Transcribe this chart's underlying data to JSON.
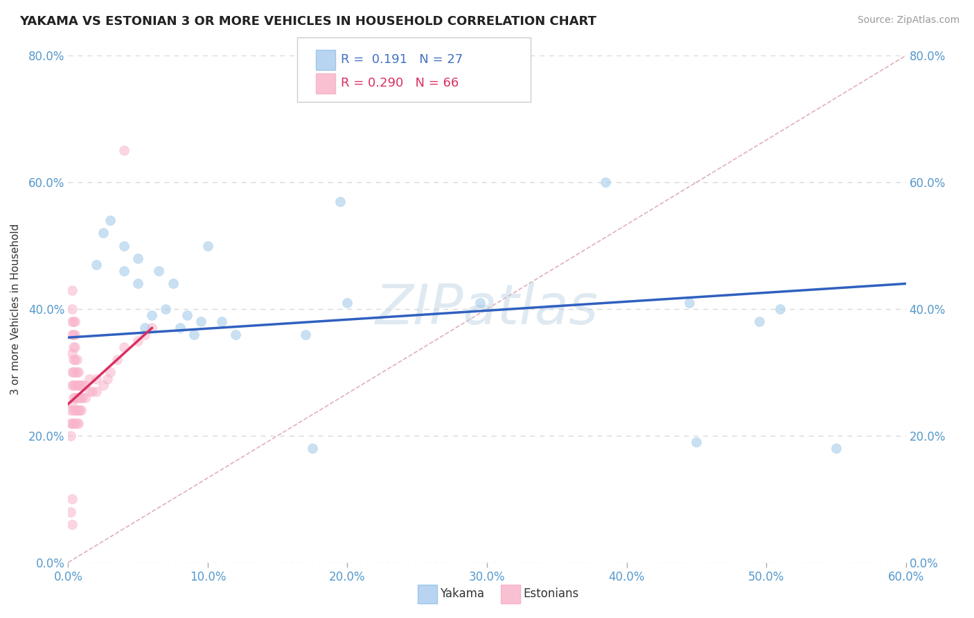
{
  "title": "YAKAMA VS ESTONIAN 3 OR MORE VEHICLES IN HOUSEHOLD CORRELATION CHART",
  "source_text": "Source: ZipAtlas.com",
  "ylabel": "3 or more Vehicles in Household",
  "xlim": [
    0.0,
    0.6
  ],
  "ylim": [
    0.0,
    0.8
  ],
  "xtick_vals": [
    0.0,
    0.1,
    0.2,
    0.3,
    0.4,
    0.5,
    0.6
  ],
  "xtick_labels": [
    "0.0%",
    "10.0%",
    "20.0%",
    "30.0%",
    "40.0%",
    "50.0%",
    "60.0%"
  ],
  "ytick_vals": [
    0.0,
    0.2,
    0.4,
    0.6,
    0.8
  ],
  "ytick_labels": [
    "0.0%",
    "20.0%",
    "40.0%",
    "60.0%",
    "80.0%"
  ],
  "watermark": "ZIPatlas",
  "yakama_scatter": [
    [
      0.02,
      0.47
    ],
    [
      0.025,
      0.52
    ],
    [
      0.03,
      0.54
    ],
    [
      0.04,
      0.46
    ],
    [
      0.04,
      0.5
    ],
    [
      0.05,
      0.44
    ],
    [
      0.05,
      0.48
    ],
    [
      0.055,
      0.37
    ],
    [
      0.06,
      0.39
    ],
    [
      0.065,
      0.46
    ],
    [
      0.07,
      0.4
    ],
    [
      0.075,
      0.44
    ],
    [
      0.08,
      0.37
    ],
    [
      0.085,
      0.39
    ],
    [
      0.09,
      0.36
    ],
    [
      0.095,
      0.38
    ],
    [
      0.1,
      0.5
    ],
    [
      0.11,
      0.38
    ],
    [
      0.12,
      0.36
    ],
    [
      0.17,
      0.36
    ],
    [
      0.175,
      0.18
    ],
    [
      0.195,
      0.57
    ],
    [
      0.2,
      0.41
    ],
    [
      0.295,
      0.41
    ],
    [
      0.385,
      0.6
    ],
    [
      0.445,
      0.41
    ],
    [
      0.45,
      0.19
    ],
    [
      0.495,
      0.38
    ],
    [
      0.51,
      0.4
    ],
    [
      0.55,
      0.18
    ]
  ],
  "estonian_scatter": [
    [
      0.002,
      0.22
    ],
    [
      0.002,
      0.24
    ],
    [
      0.002,
      0.2
    ],
    [
      0.003,
      0.22
    ],
    [
      0.003,
      0.25
    ],
    [
      0.003,
      0.28
    ],
    [
      0.003,
      0.3
    ],
    [
      0.003,
      0.33
    ],
    [
      0.003,
      0.36
    ],
    [
      0.003,
      0.38
    ],
    [
      0.003,
      0.4
    ],
    [
      0.003,
      0.43
    ],
    [
      0.004,
      0.22
    ],
    [
      0.004,
      0.24
    ],
    [
      0.004,
      0.26
    ],
    [
      0.004,
      0.28
    ],
    [
      0.004,
      0.3
    ],
    [
      0.004,
      0.32
    ],
    [
      0.004,
      0.34
    ],
    [
      0.004,
      0.36
    ],
    [
      0.004,
      0.38
    ],
    [
      0.005,
      0.22
    ],
    [
      0.005,
      0.24
    ],
    [
      0.005,
      0.26
    ],
    [
      0.005,
      0.28
    ],
    [
      0.005,
      0.3
    ],
    [
      0.005,
      0.32
    ],
    [
      0.005,
      0.34
    ],
    [
      0.005,
      0.36
    ],
    [
      0.005,
      0.38
    ],
    [
      0.006,
      0.22
    ],
    [
      0.006,
      0.24
    ],
    [
      0.006,
      0.26
    ],
    [
      0.006,
      0.28
    ],
    [
      0.006,
      0.3
    ],
    [
      0.006,
      0.32
    ],
    [
      0.007,
      0.22
    ],
    [
      0.007,
      0.24
    ],
    [
      0.007,
      0.26
    ],
    [
      0.007,
      0.28
    ],
    [
      0.007,
      0.3
    ],
    [
      0.008,
      0.24
    ],
    [
      0.008,
      0.26
    ],
    [
      0.008,
      0.28
    ],
    [
      0.009,
      0.24
    ],
    [
      0.009,
      0.26
    ],
    [
      0.009,
      0.28
    ],
    [
      0.01,
      0.26
    ],
    [
      0.01,
      0.28
    ],
    [
      0.012,
      0.26
    ],
    [
      0.012,
      0.28
    ],
    [
      0.015,
      0.27
    ],
    [
      0.015,
      0.29
    ],
    [
      0.017,
      0.27
    ],
    [
      0.02,
      0.27
    ],
    [
      0.02,
      0.29
    ],
    [
      0.025,
      0.28
    ],
    [
      0.028,
      0.29
    ],
    [
      0.03,
      0.3
    ],
    [
      0.035,
      0.32
    ],
    [
      0.04,
      0.34
    ],
    [
      0.04,
      0.65
    ],
    [
      0.05,
      0.35
    ],
    [
      0.055,
      0.36
    ],
    [
      0.06,
      0.37
    ],
    [
      0.002,
      0.08
    ],
    [
      0.003,
      0.06
    ],
    [
      0.003,
      0.1
    ]
  ],
  "yakama_color": "#9ec8e8",
  "estonian_color": "#f9b4cb",
  "trend_yakama_x0": 0.0,
  "trend_yakama_y0": 0.355,
  "trend_yakama_x1": 0.6,
  "trend_yakama_y1": 0.44,
  "trend_estonian_x0": 0.0,
  "trend_estonian_y0": 0.25,
  "trend_estonian_x1": 0.06,
  "trend_estonian_y1": 0.37,
  "trend_yakama_color": "#3060c0",
  "trend_estonian_color": "#d83060",
  "diag_color": "#e0b0b8",
  "background_color": "#ffffff",
  "grid_color": "#d8d8d8",
  "tick_label_color": "#5599cc",
  "scatter_alpha": 0.55,
  "scatter_size": 100
}
